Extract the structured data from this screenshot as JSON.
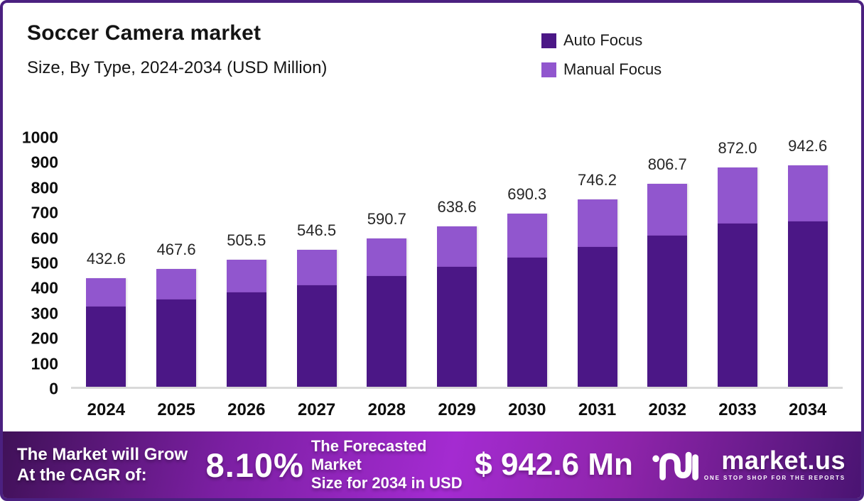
{
  "header": {
    "title": "Soccer Camera market",
    "subtitle": "Size, By Type, 2024-2034 (USD Million)"
  },
  "legend": [
    {
      "label": "Auto Focus",
      "color": "#4b1786"
    },
    {
      "label": "Manual Focus",
      "color": "#9156ce"
    }
  ],
  "chart_data": {
    "type": "bar",
    "stacked": true,
    "title": "Soccer Camera market",
    "subtitle": "Size, By Type, 2024-2034 (USD Million)",
    "xlabel": "",
    "ylabel": "",
    "ylim": [
      0,
      1000
    ],
    "yticks": [
      0,
      100,
      200,
      300,
      400,
      500,
      600,
      700,
      800,
      900,
      1000
    ],
    "grid": false,
    "legend_position": "top-right",
    "categories": [
      "2024",
      "2025",
      "2026",
      "2027",
      "2028",
      "2029",
      "2030",
      "2031",
      "2032",
      "2033",
      "2034"
    ],
    "series": [
      {
        "name": "Auto Focus",
        "color": "#4b1786",
        "values": [
          320.0,
          348.0,
          377.0,
          405.0,
          441.0,
          478.0,
          514.0,
          556.0,
          602.0,
          651.0,
          705.0
        ]
      },
      {
        "name": "Manual Focus",
        "color": "#9156ce",
        "values": [
          112.6,
          119.6,
          128.5,
          141.5,
          149.7,
          160.6,
          176.3,
          190.2,
          204.7,
          221.0,
          237.6
        ]
      }
    ],
    "totals": [
      432.6,
      467.6,
      505.5,
      546.5,
      590.7,
      638.6,
      690.3,
      746.2,
      806.7,
      872.0,
      942.6
    ],
    "totals_labels": [
      "432.6",
      "467.6",
      "505.5",
      "546.5",
      "590.7",
      "638.6",
      "690.3",
      "746.2",
      "806.7",
      "872.0",
      "942.6"
    ]
  },
  "banner": {
    "cagr_line1": "The Market will Grow",
    "cagr_line2": "At the CAGR of:",
    "cagr_value": "8.10%",
    "forecast_line1": "The Forecasted Market",
    "forecast_line2": "Size for 2034 in USD",
    "forecast_value": "$ 942.6 Mn",
    "logo_name": "market.us",
    "logo_tagline": "ONE STOP SHOP FOR THE REPORTS"
  }
}
